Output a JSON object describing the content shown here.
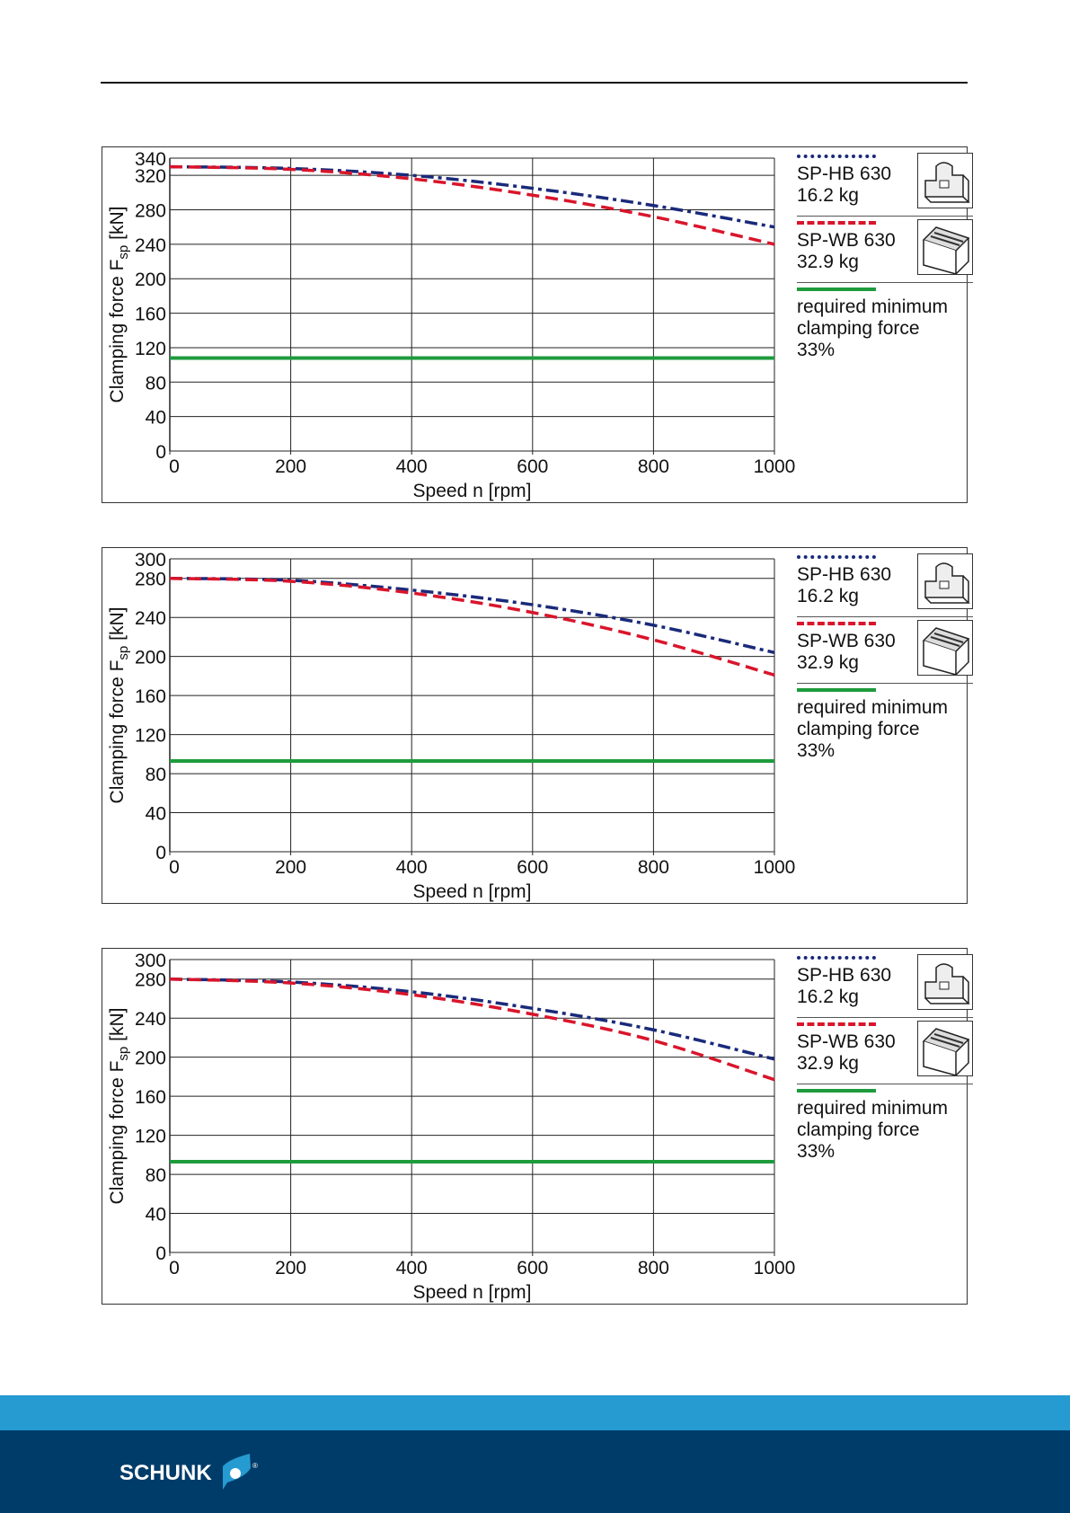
{
  "footer": {
    "brand": "SCHUNK",
    "brand_colors": {
      "light": "#259bd1",
      "dark": "#003c6a"
    }
  },
  "legend": {
    "items": [
      {
        "label_line1": "SP-HB 630",
        "label_line2": "16.2 kg",
        "color": "#1a2a7a",
        "style": "dash-dot",
        "icon": "hb-jaw-icon"
      },
      {
        "label_line1": "SP-WB 630",
        "label_line2": "32.9 kg",
        "color": "#d9152b",
        "style": "dashed",
        "icon": "wb-jaw-icon"
      },
      {
        "label_line1": "required minimum",
        "label_line2": "clamping force",
        "label_line3": "33%",
        "color": "#1e9b3c",
        "style": "solid"
      }
    ]
  },
  "chart_data": [
    {
      "type": "line",
      "xlabel": "Speed n [rpm]",
      "ylabel": {
        "main": "Clamping force F",
        "sub": "sp",
        "unit": " [kN]"
      },
      "x_ticks": [
        "0",
        "200",
        "400",
        "600",
        "800",
        "1000"
      ],
      "y_ticks": [
        "0",
        "40",
        "80",
        "120",
        "160",
        "200",
        "240",
        "280",
        "320",
        "340"
      ],
      "xlim": [
        0,
        1000
      ],
      "ylim": [
        0,
        340
      ],
      "grid": true,
      "legend": "right",
      "x": [
        0,
        200,
        400,
        600,
        800,
        1000
      ],
      "series": [
        {
          "name": "SP-HB 630 16.2 kg",
          "values": [
            330,
            328,
            320,
            305,
            285,
            260
          ]
        },
        {
          "name": "SP-WB 630 32.9 kg",
          "values": [
            330,
            327,
            316,
            297,
            272,
            240
          ]
        },
        {
          "name": "required minimum clamping force 33%",
          "values": [
            108,
            108,
            108,
            108,
            108,
            108
          ]
        }
      ]
    },
    {
      "type": "line",
      "xlabel": "Speed n [rpm]",
      "ylabel": {
        "main": "Clamping force F",
        "sub": "sp",
        "unit": " [kN]"
      },
      "x_ticks": [
        "0",
        "200",
        "400",
        "600",
        "800",
        "1000"
      ],
      "y_ticks": [
        "0",
        "40",
        "80",
        "120",
        "160",
        "200",
        "240",
        "280",
        "300"
      ],
      "xlim": [
        0,
        1000
      ],
      "ylim": [
        0,
        300
      ],
      "grid": true,
      "legend": "right",
      "x": [
        0,
        200,
        400,
        600,
        800,
        1000
      ],
      "series": [
        {
          "name": "SP-HB 630 16.2 kg",
          "values": [
            280,
            278,
            268,
            253,
            232,
            204
          ]
        },
        {
          "name": "SP-WB 630 32.9 kg",
          "values": [
            280,
            277,
            265,
            245,
            217,
            181
          ]
        },
        {
          "name": "required minimum clamping force 33%",
          "values": [
            93,
            93,
            93,
            93,
            93,
            93
          ]
        }
      ]
    },
    {
      "type": "line",
      "xlabel": "Speed n [rpm]",
      "ylabel": {
        "main": "Clamping force F",
        "sub": "sp",
        "unit": " [kN]"
      },
      "x_ticks": [
        "0",
        "200",
        "400",
        "600",
        "800",
        "1000"
      ],
      "y_ticks": [
        "0",
        "40",
        "80",
        "120",
        "160",
        "200",
        "240",
        "280",
        "300"
      ],
      "xlim": [
        0,
        1000
      ],
      "ylim": [
        0,
        300
      ],
      "grid": true,
      "legend": "right",
      "x": [
        0,
        200,
        400,
        600,
        800,
        1000
      ],
      "series": [
        {
          "name": "SP-HB 630 16.2 kg",
          "values": [
            280,
            277,
            267,
            250,
            228,
            198
          ]
        },
        {
          "name": "SP-WB 630 32.9 kg",
          "values": [
            280,
            276,
            264,
            244,
            217,
            177
          ]
        },
        {
          "name": "required minimum clamping force 33%",
          "values": [
            93,
            93,
            93,
            93,
            93,
            93
          ]
        }
      ]
    }
  ]
}
